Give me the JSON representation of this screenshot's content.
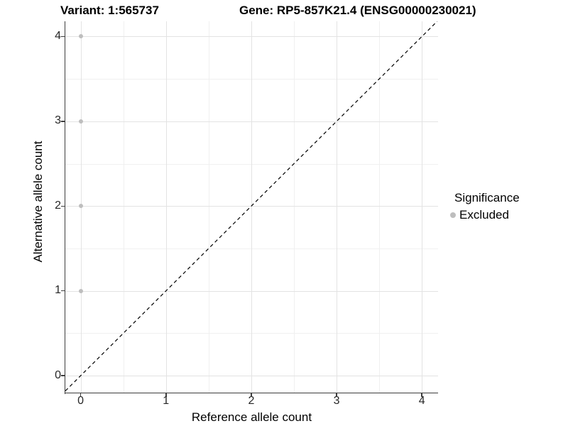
{
  "chart_data": {
    "type": "scatter",
    "titles": {
      "variant": "Variant: 1:565737",
      "gene": "Gene: RP5-857K21.4 (ENSG00000230021)"
    },
    "xlabel": "Reference allele count",
    "ylabel": "Alternative allele count",
    "x_ticks": [
      0,
      1,
      2,
      3,
      4
    ],
    "y_ticks": [
      0,
      1,
      2,
      3,
      4
    ],
    "xlim": [
      -0.18,
      4.19
    ],
    "ylim": [
      -0.2,
      4.18
    ],
    "grid": {
      "major": true,
      "minor": true
    },
    "series": [
      {
        "name": "Excluded",
        "color": "#bebebe",
        "points": [
          [
            0,
            1
          ],
          [
            0,
            2
          ],
          [
            0,
            3
          ],
          [
            0,
            4
          ]
        ]
      }
    ],
    "reference_line": {
      "slope": 1,
      "intercept": 0,
      "style": "dashed",
      "color": "#000000"
    },
    "legend": {
      "title": "Significance",
      "position": "right",
      "items": [
        {
          "label": "Excluded",
          "color": "#bebebe"
        }
      ]
    },
    "colors": {
      "point": "#bebebe",
      "grid_major": "#e3e3e3",
      "grid_minor": "#f0f0f0",
      "axis": "#3d3d3d",
      "tick_text": "#262626",
      "title_text": "#000000"
    }
  }
}
